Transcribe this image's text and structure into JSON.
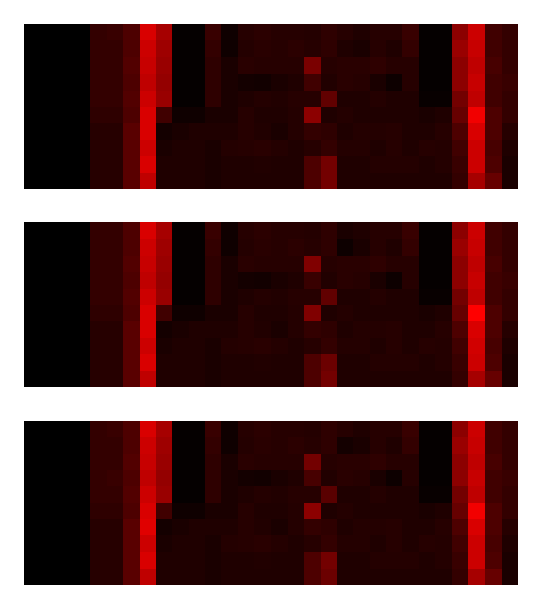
{
  "chart_data": [
    {
      "type": "heatmap",
      "color": "#ff0000",
      "zlim": [
        0,
        1
      ],
      "tick_labels": false,
      "z": [
        [
          0,
          0,
          0,
          0,
          0.2,
          0.22,
          0.3,
          0.85,
          0.65,
          0.02,
          0.02,
          0.22,
          0.06,
          0.15,
          0.17,
          0.15,
          0.15,
          0.14,
          0.18,
          0.15,
          0.12,
          0.15,
          0.15,
          0.22,
          0.02,
          0.02,
          0.55,
          0.8,
          0.25,
          0.2
        ],
        [
          0,
          0,
          0,
          0,
          0.2,
          0.2,
          0.3,
          0.8,
          0.62,
          0.02,
          0.02,
          0.2,
          0.06,
          0.14,
          0.16,
          0.15,
          0.17,
          0.15,
          0.18,
          0.12,
          0.1,
          0.15,
          0.12,
          0.2,
          0.02,
          0.02,
          0.6,
          0.78,
          0.25,
          0.2
        ],
        [
          0,
          0,
          0,
          0,
          0.2,
          0.2,
          0.32,
          0.78,
          0.6,
          0.02,
          0.02,
          0.18,
          0.1,
          0.16,
          0.15,
          0.15,
          0.15,
          0.48,
          0.15,
          0.16,
          0.16,
          0.18,
          0.15,
          0.15,
          0.02,
          0.02,
          0.55,
          0.75,
          0.28,
          0.2
        ],
        [
          0,
          0,
          0,
          0,
          0.2,
          0.2,
          0.3,
          0.75,
          0.58,
          0.02,
          0.02,
          0.18,
          0.1,
          0.08,
          0.07,
          0.1,
          0.12,
          0.25,
          0.13,
          0.16,
          0.15,
          0.1,
          0.05,
          0.15,
          0.02,
          0.02,
          0.55,
          0.78,
          0.25,
          0.22
        ],
        [
          0,
          0,
          0,
          0,
          0.2,
          0.2,
          0.32,
          0.8,
          0.6,
          0.02,
          0.02,
          0.18,
          0.1,
          0.12,
          0.14,
          0.13,
          0.15,
          0.15,
          0.38,
          0.12,
          0.12,
          0.14,
          0.12,
          0.12,
          0.03,
          0.03,
          0.45,
          0.75,
          0.25,
          0.2
        ],
        [
          0,
          0,
          0,
          0,
          0.18,
          0.18,
          0.3,
          0.85,
          0.25,
          0.06,
          0.06,
          0.1,
          0.1,
          0.15,
          0.12,
          0.12,
          0.14,
          0.55,
          0.12,
          0.14,
          0.12,
          0.12,
          0.12,
          0.12,
          0.1,
          0.12,
          0.4,
          0.95,
          0.3,
          0.2
        ],
        [
          0,
          0,
          0,
          0,
          0.15,
          0.15,
          0.35,
          0.85,
          0.08,
          0.1,
          0.12,
          0.12,
          0.12,
          0.15,
          0.13,
          0.1,
          0.14,
          0.2,
          0.18,
          0.12,
          0.14,
          0.14,
          0.15,
          0.12,
          0.12,
          0.15,
          0.3,
          0.85,
          0.3,
          0.15
        ],
        [
          0,
          0,
          0,
          0,
          0.15,
          0.15,
          0.35,
          0.8,
          0.1,
          0.12,
          0.12,
          0.1,
          0.14,
          0.15,
          0.16,
          0.14,
          0.12,
          0.15,
          0.2,
          0.14,
          0.14,
          0.12,
          0.15,
          0.12,
          0.15,
          0.14,
          0.25,
          0.8,
          0.28,
          0.12
        ],
        [
          0,
          0,
          0,
          0,
          0.15,
          0.15,
          0.35,
          0.85,
          0.12,
          0.12,
          0.12,
          0.1,
          0.12,
          0.12,
          0.13,
          0.12,
          0.12,
          0.3,
          0.45,
          0.12,
          0.12,
          0.14,
          0.14,
          0.14,
          0.12,
          0.14,
          0.22,
          0.8,
          0.3,
          0.1
        ],
        [
          0,
          0,
          0,
          0,
          0.15,
          0.15,
          0.35,
          0.75,
          0.12,
          0.12,
          0.12,
          0.1,
          0.12,
          0.12,
          0.12,
          0.12,
          0.12,
          0.3,
          0.45,
          0.12,
          0.12,
          0.12,
          0.12,
          0.12,
          0.12,
          0.12,
          0.2,
          0.65,
          0.4,
          0.1
        ]
      ]
    },
    {
      "type": "heatmap",
      "color": "#ff0000",
      "zlim": [
        0,
        1
      ],
      "tick_labels": false,
      "z": [
        [
          0,
          0,
          0,
          0,
          0.2,
          0.2,
          0.3,
          0.85,
          0.65,
          0.02,
          0.02,
          0.22,
          0.06,
          0.15,
          0.17,
          0.15,
          0.15,
          0.14,
          0.18,
          0.1,
          0.12,
          0.15,
          0.15,
          0.22,
          0.02,
          0.02,
          0.55,
          0.8,
          0.25,
          0.2
        ],
        [
          0,
          0,
          0,
          0,
          0.2,
          0.2,
          0.3,
          0.8,
          0.62,
          0.02,
          0.02,
          0.2,
          0.06,
          0.14,
          0.16,
          0.15,
          0.17,
          0.15,
          0.18,
          0.05,
          0.1,
          0.15,
          0.12,
          0.2,
          0.02,
          0.02,
          0.6,
          0.78,
          0.25,
          0.2
        ],
        [
          0,
          0,
          0,
          0,
          0.2,
          0.2,
          0.32,
          0.78,
          0.6,
          0.02,
          0.02,
          0.18,
          0.1,
          0.16,
          0.15,
          0.15,
          0.15,
          0.5,
          0.15,
          0.16,
          0.16,
          0.18,
          0.15,
          0.15,
          0.02,
          0.02,
          0.55,
          0.75,
          0.28,
          0.2
        ],
        [
          0,
          0,
          0,
          0,
          0.2,
          0.2,
          0.3,
          0.75,
          0.58,
          0.02,
          0.02,
          0.18,
          0.1,
          0.08,
          0.07,
          0.1,
          0.12,
          0.22,
          0.13,
          0.16,
          0.15,
          0.1,
          0.05,
          0.15,
          0.02,
          0.02,
          0.55,
          0.78,
          0.25,
          0.22
        ],
        [
          0,
          0,
          0,
          0,
          0.2,
          0.2,
          0.32,
          0.8,
          0.6,
          0.02,
          0.02,
          0.18,
          0.1,
          0.12,
          0.14,
          0.13,
          0.15,
          0.15,
          0.38,
          0.12,
          0.12,
          0.14,
          0.12,
          0.12,
          0.03,
          0.03,
          0.45,
          0.75,
          0.25,
          0.2
        ],
        [
          0,
          0,
          0,
          0,
          0.18,
          0.18,
          0.3,
          0.85,
          0.25,
          0.06,
          0.06,
          0.1,
          0.1,
          0.15,
          0.12,
          0.12,
          0.14,
          0.5,
          0.12,
          0.14,
          0.12,
          0.12,
          0.12,
          0.12,
          0.1,
          0.12,
          0.4,
          1,
          0.3,
          0.2
        ],
        [
          0,
          0,
          0,
          0,
          0.15,
          0.15,
          0.35,
          0.85,
          0.08,
          0.1,
          0.12,
          0.12,
          0.12,
          0.15,
          0.13,
          0.1,
          0.14,
          0.2,
          0.18,
          0.12,
          0.14,
          0.14,
          0.15,
          0.12,
          0.12,
          0.15,
          0.3,
          0.85,
          0.3,
          0.15
        ],
        [
          0,
          0,
          0,
          0,
          0.15,
          0.15,
          0.35,
          0.8,
          0.1,
          0.12,
          0.12,
          0.1,
          0.14,
          0.15,
          0.16,
          0.14,
          0.12,
          0.15,
          0.2,
          0.14,
          0.14,
          0.12,
          0.15,
          0.12,
          0.15,
          0.14,
          0.25,
          0.82,
          0.28,
          0.12
        ],
        [
          0,
          0,
          0,
          0,
          0.15,
          0.15,
          0.35,
          0.85,
          0.12,
          0.12,
          0.12,
          0.1,
          0.12,
          0.12,
          0.13,
          0.12,
          0.12,
          0.3,
          0.42,
          0.12,
          0.12,
          0.14,
          0.14,
          0.14,
          0.12,
          0.14,
          0.22,
          0.8,
          0.3,
          0.1
        ],
        [
          0,
          0,
          0,
          0,
          0.15,
          0.15,
          0.35,
          0.75,
          0.12,
          0.12,
          0.12,
          0.1,
          0.12,
          0.12,
          0.12,
          0.12,
          0.12,
          0.3,
          0.45,
          0.12,
          0.12,
          0.12,
          0.12,
          0.12,
          0.12,
          0.12,
          0.2,
          0.65,
          0.4,
          0.1
        ]
      ]
    },
    {
      "type": "heatmap",
      "color": "#ff0000",
      "zlim": [
        0,
        1
      ],
      "tick_labels": false,
      "z": [
        [
          0,
          0,
          0,
          0,
          0.2,
          0.22,
          0.3,
          0.85,
          0.65,
          0.02,
          0.02,
          0.22,
          0.06,
          0.15,
          0.17,
          0.15,
          0.15,
          0.14,
          0.18,
          0.15,
          0.12,
          0.15,
          0.15,
          0.22,
          0.02,
          0.02,
          0.55,
          0.8,
          0.25,
          0.2
        ],
        [
          0,
          0,
          0,
          0,
          0.2,
          0.2,
          0.3,
          0.8,
          0.62,
          0.02,
          0.02,
          0.2,
          0.06,
          0.14,
          0.16,
          0.15,
          0.17,
          0.15,
          0.18,
          0.08,
          0.1,
          0.15,
          0.12,
          0.2,
          0.02,
          0.02,
          0.6,
          0.78,
          0.25,
          0.2
        ],
        [
          0,
          0,
          0,
          0,
          0.2,
          0.2,
          0.32,
          0.78,
          0.6,
          0.02,
          0.02,
          0.18,
          0.1,
          0.16,
          0.15,
          0.15,
          0.15,
          0.45,
          0.15,
          0.16,
          0.16,
          0.18,
          0.15,
          0.15,
          0.02,
          0.02,
          0.55,
          0.75,
          0.28,
          0.2
        ],
        [
          0,
          0,
          0,
          0,
          0.2,
          0.22,
          0.3,
          0.75,
          0.58,
          0.02,
          0.02,
          0.18,
          0.1,
          0.08,
          0.07,
          0.1,
          0.12,
          0.28,
          0.13,
          0.16,
          0.15,
          0.1,
          0.05,
          0.15,
          0.02,
          0.02,
          0.55,
          0.78,
          0.25,
          0.22
        ],
        [
          0,
          0,
          0,
          0,
          0.2,
          0.2,
          0.32,
          0.8,
          0.6,
          0.02,
          0.02,
          0.18,
          0.1,
          0.12,
          0.14,
          0.13,
          0.15,
          0.15,
          0.35,
          0.12,
          0.12,
          0.14,
          0.12,
          0.12,
          0.03,
          0.03,
          0.45,
          0.75,
          0.25,
          0.2
        ],
        [
          0,
          0,
          0,
          0,
          0.18,
          0.18,
          0.3,
          0.85,
          0.25,
          0.06,
          0.06,
          0.1,
          0.1,
          0.15,
          0.12,
          0.12,
          0.14,
          0.55,
          0.12,
          0.14,
          0.12,
          0.12,
          0.12,
          0.12,
          0.1,
          0.12,
          0.4,
          0.95,
          0.3,
          0.2
        ],
        [
          0,
          0,
          0,
          0,
          0.15,
          0.15,
          0.35,
          0.88,
          0.08,
          0.1,
          0.12,
          0.12,
          0.12,
          0.15,
          0.13,
          0.1,
          0.14,
          0.2,
          0.18,
          0.12,
          0.14,
          0.14,
          0.15,
          0.12,
          0.12,
          0.15,
          0.3,
          0.85,
          0.3,
          0.15
        ],
        [
          0,
          0,
          0,
          0,
          0.15,
          0.15,
          0.35,
          0.8,
          0.1,
          0.12,
          0.12,
          0.1,
          0.14,
          0.15,
          0.16,
          0.14,
          0.12,
          0.15,
          0.2,
          0.14,
          0.14,
          0.12,
          0.15,
          0.12,
          0.15,
          0.14,
          0.25,
          0.8,
          0.28,
          0.12
        ],
        [
          0,
          0,
          0,
          0,
          0.15,
          0.15,
          0.35,
          0.85,
          0.12,
          0.12,
          0.12,
          0.1,
          0.12,
          0.12,
          0.13,
          0.12,
          0.12,
          0.3,
          0.45,
          0.12,
          0.12,
          0.14,
          0.14,
          0.14,
          0.12,
          0.14,
          0.22,
          0.8,
          0.3,
          0.1
        ],
        [
          0,
          0,
          0,
          0,
          0.15,
          0.15,
          0.35,
          0.75,
          0.12,
          0.12,
          0.12,
          0.1,
          0.12,
          0.12,
          0.12,
          0.12,
          0.12,
          0.3,
          0.42,
          0.12,
          0.12,
          0.12,
          0.12,
          0.12,
          0.12,
          0.12,
          0.2,
          0.65,
          0.4,
          0.1
        ]
      ]
    }
  ]
}
